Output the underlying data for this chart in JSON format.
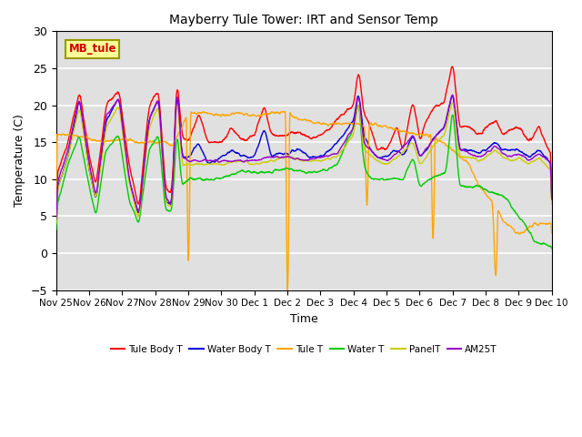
{
  "title": "Mayberry Tule Tower: IRT and Sensor Temp",
  "xlabel": "Time",
  "ylabel": "Temperature (C)",
  "ylim": [
    -5,
    30
  ],
  "yticks": [
    -5,
    0,
    5,
    10,
    15,
    20,
    25,
    30
  ],
  "date_labels": [
    "Nov 25",
    "Nov 26",
    "Nov 27",
    "Nov 28",
    "Nov 29",
    "Nov 30",
    "Dec 1",
    "Dec 2",
    "Dec 3",
    "Dec 4",
    "Dec 5",
    "Dec 6",
    "Dec 7",
    "Dec 8",
    "Dec 9",
    "Dec 10"
  ],
  "legend_labels": [
    "Tule Body T",
    "Water Body T",
    "Tule T",
    "Water T",
    "PanelT",
    "AM25T"
  ],
  "line_colors": [
    "#ff0000",
    "#0000dd",
    "#ffa500",
    "#00cc00",
    "#cccc00",
    "#9900cc"
  ],
  "station_label": "MB_tule",
  "background_color": "#e0e0e0",
  "grid_color": "#ffffff",
  "n_points": 1500
}
